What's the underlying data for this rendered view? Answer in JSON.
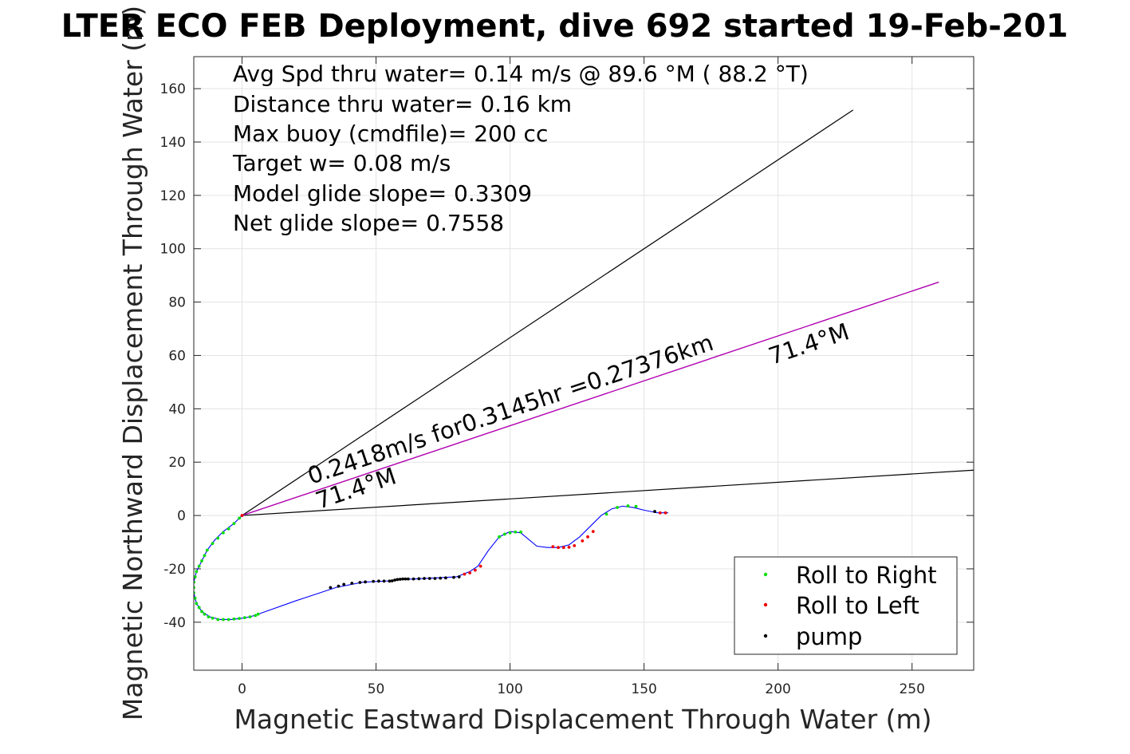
{
  "chart_data": {
    "type": "scatter",
    "title": "LTER ECO FEB Deployment, dive 692 started 19-Feb-201",
    "xlabel": "Magnetic Eastward Displacement Through Water (m)",
    "ylabel": "Magnetic Northward Displacement Through Water (m)",
    "xlim": [
      -18,
      273
    ],
    "ylim": [
      -58,
      172
    ],
    "xticks": [
      0,
      50,
      100,
      150,
      200,
      250
    ],
    "yticks": [
      -40,
      -20,
      0,
      20,
      40,
      60,
      80,
      100,
      120,
      140,
      160
    ],
    "grid": true,
    "legend_position": "bottom-right",
    "info_lines": [
      "Avg Spd thru water=  0.14 m/s @  89.6 °M ( 88.2 °T)",
      "Distance thru water=  0.16 km",
      "Max buoy (cmdfile)= 200 cc",
      "Target w= 0.08 m/s",
      "Model glide slope= 0.3309",
      "Net glide slope= 0.7558"
    ],
    "annotations": {
      "speed_text": "0.2418m/s for0.3145hr =0.27376km",
      "heading_near": "71.4°M",
      "heading_far": "71.4°M"
    },
    "reference_lines": [
      {
        "name": "upper bound",
        "x": [
          0,
          228
        ],
        "y": [
          0,
          152
        ],
        "color": "#000000"
      },
      {
        "name": "lower bound",
        "x": [
          0,
          273
        ],
        "y": [
          0,
          17
        ],
        "color": "#000000"
      },
      {
        "name": "current",
        "x": [
          0,
          260
        ],
        "y": [
          0,
          87.5
        ],
        "color": "#b000b0"
      }
    ],
    "track": {
      "color": "#0000ff",
      "x": [
        0,
        -3,
        -7,
        -10,
        -13,
        -15,
        -17,
        -18,
        -18,
        -17,
        -15,
        -12,
        -8,
        -4,
        0,
        3,
        6,
        20,
        35,
        45,
        55,
        60,
        70,
        80,
        85,
        88,
        92,
        96,
        100,
        104,
        107,
        110,
        114,
        118,
        122,
        126,
        130,
        134,
        138,
        142,
        146,
        150,
        155,
        159
      ],
      "y": [
        0,
        -3,
        -6,
        -9,
        -13,
        -17,
        -21,
        -25,
        -29,
        -33,
        -36,
        -38,
        -39,
        -39,
        -38.5,
        -38,
        -37,
        -32,
        -27,
        -25,
        -24.5,
        -24,
        -23.5,
        -23,
        -21,
        -19,
        -13,
        -8,
        -6,
        -6.5,
        -9,
        -11.5,
        -12,
        -12,
        -11,
        -8,
        -4,
        0,
        2.5,
        3.5,
        3,
        2,
        1,
        1
      ]
    },
    "series": [
      {
        "name": "Roll to Right",
        "color": "#00dd00",
        "marker": "dot",
        "x": [
          -1,
          -3,
          -5,
          -7,
          -9,
          -11,
          -13,
          -14,
          -15,
          -16,
          -17,
          -17.5,
          -18,
          -18,
          -18,
          -17.5,
          -17,
          -16,
          -15,
          -14,
          -12.5,
          -11,
          -9,
          -7,
          -5,
          -3,
          -1,
          1,
          3,
          5,
          6,
          96,
          98,
          100,
          102,
          104,
          136,
          140,
          144,
          147
        ],
        "y": [
          -1,
          -3,
          -5,
          -6.5,
          -8.5,
          -10.5,
          -13,
          -15,
          -17,
          -19,
          -21,
          -23,
          -25,
          -27,
          -29,
          -31,
          -33,
          -34.5,
          -36,
          -37,
          -38,
          -38.5,
          -39,
          -39,
          -39,
          -38.8,
          -38.6,
          -38.3,
          -38,
          -37.5,
          -37,
          -8,
          -7,
          -6.5,
          -6.2,
          -6.2,
          0.5,
          3,
          3.6,
          3.4
        ]
      },
      {
        "name": "Roll to Left",
        "color": "#ee0000",
        "marker": "dot",
        "x": [
          0,
          83,
          85,
          87,
          89,
          116,
          118,
          120,
          122,
          124,
          127,
          129,
          131,
          156,
          158
        ],
        "y": [
          0,
          -22,
          -21.5,
          -20.5,
          -19,
          -11.7,
          -12,
          -12,
          -11.9,
          -11.3,
          -9.5,
          -8,
          -6,
          1,
          1
        ]
      },
      {
        "name": "pump",
        "color": "#000000",
        "marker": "dot",
        "x": [
          33,
          36,
          38,
          41,
          44,
          46,
          49,
          51,
          53,
          55,
          56,
          57,
          58,
          59,
          60,
          61,
          62,
          64,
          66,
          68,
          70,
          72,
          74,
          76,
          79,
          81,
          154
        ],
        "y": [
          -27,
          -26.5,
          -25.8,
          -25.4,
          -25.1,
          -24.9,
          -24.7,
          -24.6,
          -24.6,
          -24.6,
          -24.5,
          -24.2,
          -24,
          -23.9,
          -23.8,
          -23.8,
          -23.8,
          -23.8,
          -23.7,
          -23.6,
          -23.6,
          -23.6,
          -23.5,
          -23.4,
          -23.2,
          -23,
          1.5
        ]
      }
    ]
  }
}
